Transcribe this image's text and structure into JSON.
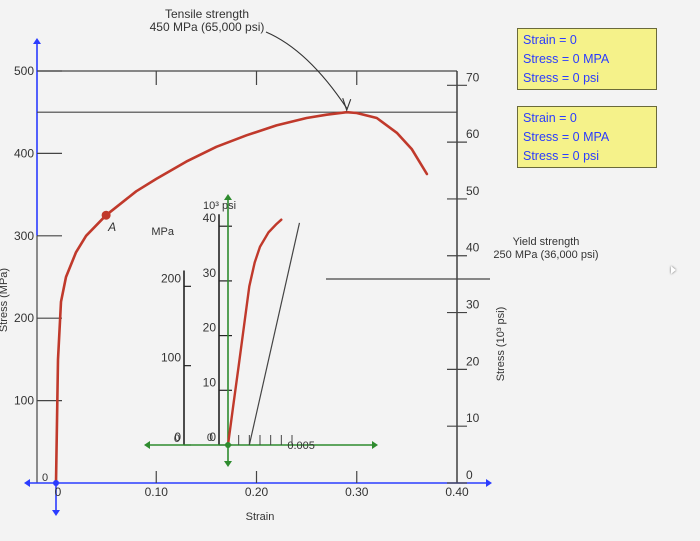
{
  "chart_data": {
    "type": "line",
    "xlabel": "Strain",
    "ylabel": "Stress (MPa)",
    "ylabel_right": "Stress (10³ psi)",
    "xlim": [
      0,
      0.4
    ],
    "ylim": [
      0,
      500
    ],
    "x_ticks": [
      {
        "value": 0,
        "label": "0"
      },
      {
        "value": 0.1,
        "label": "0.10"
      },
      {
        "value": 0.2,
        "label": "0.20"
      },
      {
        "value": 0.3,
        "label": "0.30"
      },
      {
        "value": 0.4,
        "label": "0.40"
      }
    ],
    "y_ticks": [
      {
        "value": 0,
        "label": "0"
      },
      {
        "value": 100,
        "label": "100"
      },
      {
        "value": 200,
        "label": "200"
      },
      {
        "value": 300,
        "label": "300"
      },
      {
        "value": 400,
        "label": "400"
      },
      {
        "value": 500,
        "label": "500"
      }
    ],
    "y_right_ticks": [
      {
        "value": 0,
        "label": "0"
      },
      {
        "value": 10,
        "label": "10"
      },
      {
        "value": 20,
        "label": "20"
      },
      {
        "value": 30,
        "label": "30"
      },
      {
        "value": 40,
        "label": "40"
      },
      {
        "value": 50,
        "label": "50"
      },
      {
        "value": 60,
        "label": "60"
      },
      {
        "value": 70,
        "label": "70"
      }
    ],
    "grid": false,
    "series": [
      {
        "color": "#c0392b",
        "x": [
          0.0,
          0.002,
          0.005,
          0.01,
          0.02,
          0.03,
          0.05,
          0.08,
          0.1,
          0.13,
          0.16,
          0.19,
          0.22,
          0.25,
          0.27,
          0.29,
          0.3,
          0.32,
          0.34,
          0.355,
          0.37
        ],
        "y": [
          0,
          150,
          220,
          250,
          280,
          300,
          325,
          354,
          369,
          390,
          408,
          422,
          434,
          443,
          447,
          450,
          449,
          443,
          425,
          405,
          375
        ]
      }
    ],
    "point": {
      "label": "A",
      "x": 0.05,
      "y": 325
    },
    "annotations": [
      {
        "id": "tensile",
        "text": [
          "Tensile strength",
          "450 MPa (65,000 psi)"
        ]
      },
      {
        "id": "yield",
        "text": [
          "Yield strength",
          "250 MPa (36,000 psi)"
        ]
      }
    ],
    "inset": {
      "xlim": [
        0,
        0.012
      ],
      "ylim": [
        0,
        300
      ],
      "y_ticks": [
        {
          "value": 0,
          "label": "0"
        },
        {
          "value": 100,
          "label": "100"
        },
        {
          "value": 200,
          "label": "200"
        }
      ],
      "y_unit": "MPa",
      "y2_ticks": [
        {
          "value": 0,
          "label": "0"
        },
        {
          "value": 10,
          "label": "10"
        },
        {
          "value": 20,
          "label": "20"
        },
        {
          "value": 30,
          "label": "30"
        },
        {
          "value": 40,
          "label": "40"
        }
      ],
      "y2_unit": "10³ psi",
      "x_tick_label": "0.005",
      "x_tick_value": 0.005,
      "series": {
        "x": [
          0,
          0.0005,
          0.001,
          0.0015,
          0.002,
          0.0025,
          0.003,
          0.0038,
          0.0045,
          0.005
        ],
        "y": [
          0,
          50,
          100,
          150,
          200,
          230,
          250,
          268,
          278,
          284
        ]
      },
      "offset_line": {
        "x": [
          0.002,
          0.0067
        ],
        "y": [
          0,
          280
        ]
      }
    }
  },
  "info_boxes": [
    {
      "strain": "Strain = 0",
      "stress_mpa": "Stress = 0 MPA",
      "stress_psi": "Stress = 0 psi"
    },
    {
      "strain": "Strain = 0",
      "stress_mpa": "Stress = 0 MPA",
      "stress_psi": "Stress = 0 psi"
    }
  ]
}
